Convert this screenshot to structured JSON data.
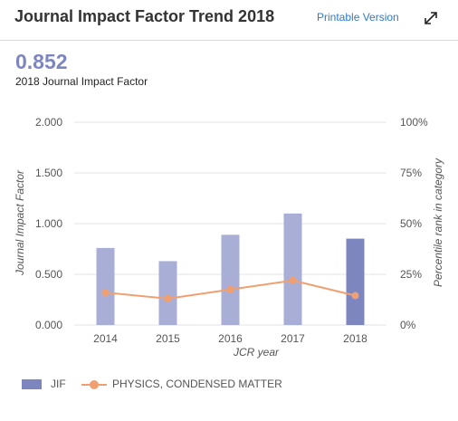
{
  "header": {
    "title": "Journal Impact Factor Trend 2018",
    "printable_link": "Printable Version",
    "expand_icon": "expand-arrows-icon"
  },
  "metric": {
    "value": "0.852",
    "label": "2018 Journal Impact Factor"
  },
  "colors": {
    "bar": "#a9aed6",
    "bar_highlight": "#7e86c0",
    "line": "#f0a070",
    "grid": "#e3e3e3",
    "link": "#2c7bc9"
  },
  "chart_data": {
    "type": "bar",
    "categories": [
      "2014",
      "2015",
      "2016",
      "2017",
      "2018"
    ],
    "xlabel": "JCR year",
    "ylabel": "Journal Impact Factor",
    "ylabel_right": "Percentile rank in category",
    "ylim": [
      0,
      2
    ],
    "ylim_right": [
      0,
      100
    ],
    "yticks": [
      "0.000",
      "0.500",
      "1.000",
      "1.500",
      "2.000"
    ],
    "yticks_right": [
      "0%",
      "25%",
      "50%",
      "75%",
      "100%"
    ],
    "grid": true,
    "legend_position": "bottom-left",
    "series": [
      {
        "name": "JIF",
        "kind": "bar",
        "axis": "left",
        "values": [
          0.76,
          0.63,
          0.89,
          1.1,
          0.852
        ]
      },
      {
        "name": "PHYSICS, CONDENSED MATTER",
        "kind": "line",
        "axis": "right",
        "values": [
          16,
          13,
          17.5,
          22,
          14.5
        ]
      }
    ]
  }
}
